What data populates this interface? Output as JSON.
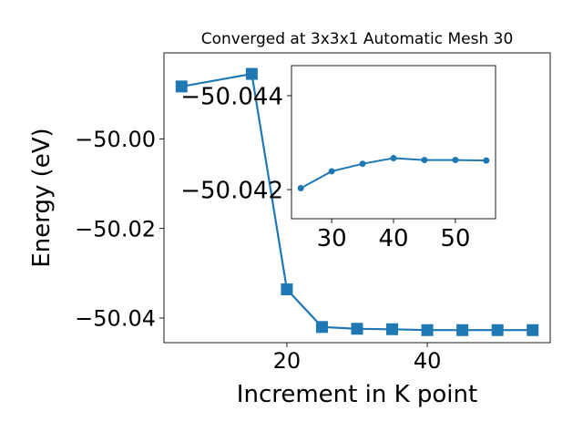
{
  "chart_data": [
    {
      "type": "line",
      "title": "Converged at 3x3x1 Automatic Mesh 30",
      "xlabel": "Increment in K point",
      "ylabel": "Energy (eV)",
      "marker": "square",
      "color": "#1f77b4",
      "grid": false,
      "x": [
        5,
        15,
        20,
        25,
        30,
        35,
        40,
        45,
        50,
        55
      ],
      "y": [
        -49.9883,
        -49.9855,
        -50.0336,
        -50.042,
        -50.0424,
        -50.0425,
        -50.0427,
        -50.0427,
        -50.0427,
        -50.0427
      ],
      "xlim": [
        2.5,
        57.5
      ],
      "ylim": [
        -50.0455,
        -49.9808
      ],
      "xticks": [
        20,
        40
      ],
      "xtick_labels": [
        "20",
        "40"
      ],
      "yticks": [
        -50.0,
        -50.02,
        -50.04
      ],
      "ytick_labels": [
        "−50.00",
        "−50.02",
        "−50.04"
      ]
    },
    {
      "type": "line",
      "inset": true,
      "marker": "circle",
      "color": "#1f77b4",
      "grid": false,
      "x": [
        25,
        30,
        35,
        40,
        45,
        50,
        55
      ],
      "y": [
        -50.04203,
        -50.04239,
        -50.04255,
        -50.04267,
        -50.04263,
        -50.04263,
        -50.04262
      ],
      "xlim": [
        23.5,
        56.5
      ],
      "ylim": [
        -50.04138,
        -50.04464
      ],
      "y_axis_inverted": true,
      "xticks": [
        30,
        40,
        50
      ],
      "xtick_labels": [
        "30",
        "40",
        "50"
      ],
      "yticks": [
        -50.044,
        -50.042
      ],
      "ytick_labels": [
        "−50.044",
        "−50.042"
      ]
    }
  ]
}
